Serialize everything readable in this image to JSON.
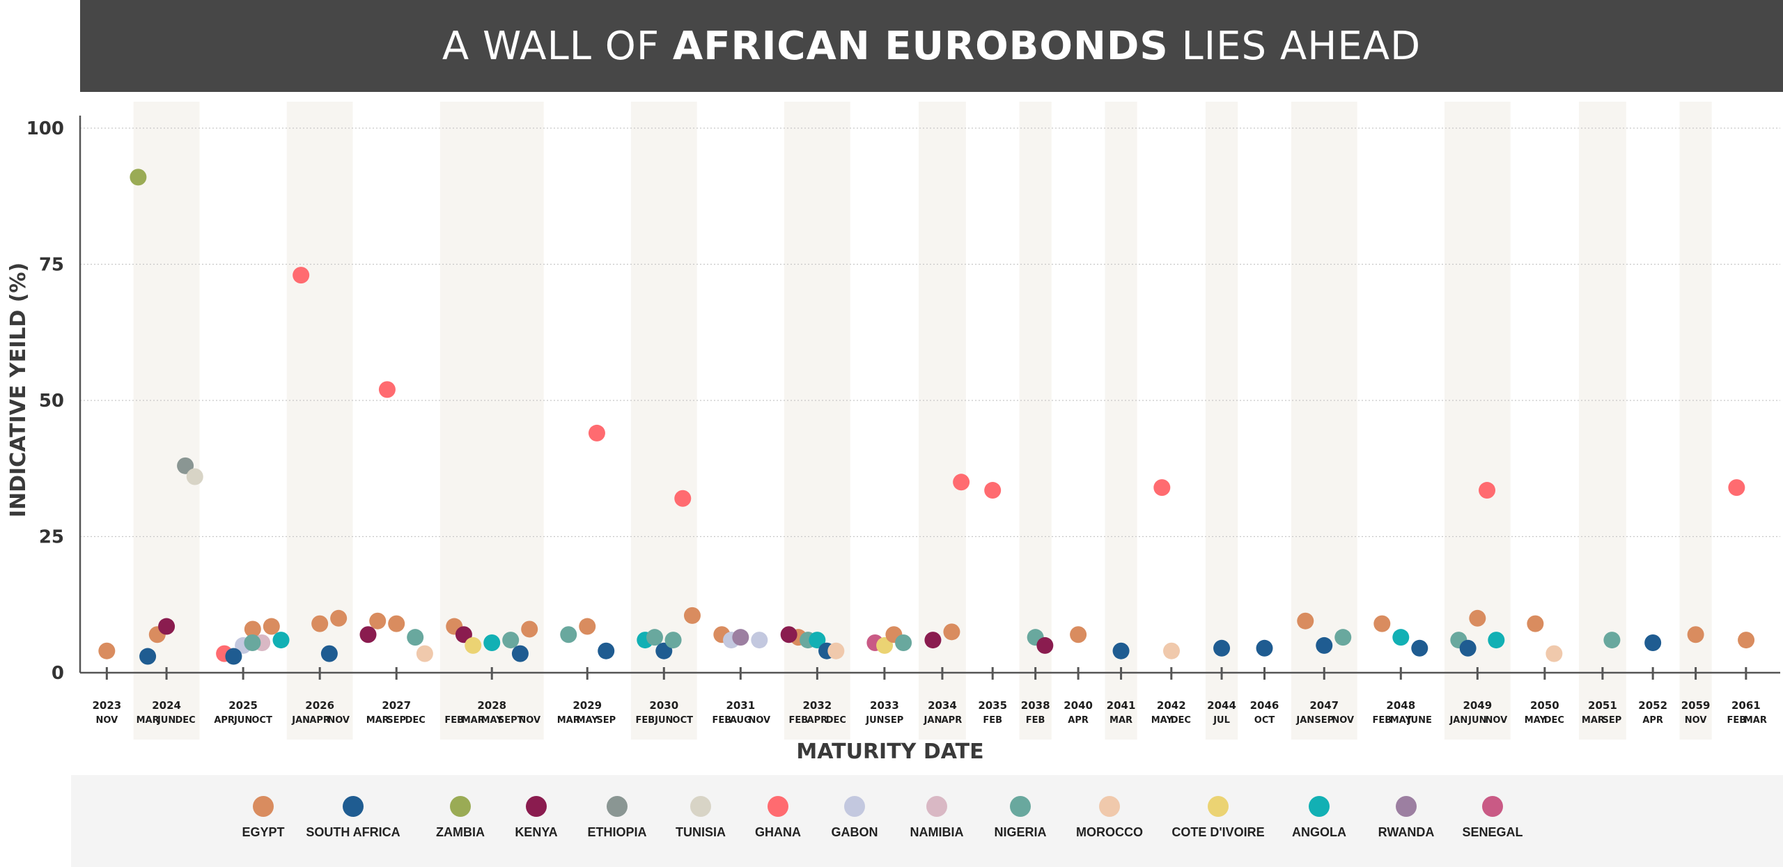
{
  "title": {
    "part1": "A WALL OF ",
    "part2": "AFRICAN EUROBONDS",
    "part3": " LIES AHEAD"
  },
  "colors": {
    "title_bg": "#474747",
    "band": "#f7f5f1",
    "grid": "#c8c8c8",
    "axis": "#555555",
    "EGYPT": "#d98c5f",
    "SOUTH AFRICA": "#1f5c91",
    "ZAMBIA": "#9aab55",
    "KENYA": "#8a1c4f",
    "ETHIOPIA": "#8a9693",
    "TUNISIA": "#d8d4c6",
    "GHANA": "#ff6b70",
    "GABON": "#c3c8df",
    "NAMIBIA": "#d9b8c4",
    "NIGERIA": "#69a89e",
    "MOROCCO": "#f0c9ac",
    "COTE D'IVOIRE": "#ebd373",
    "ANGOLA": "#12b0b4",
    "RWANDA": "#9c7fa1",
    "SENEGAL": "#c95a85"
  },
  "chart_data": {
    "type": "scatter",
    "title": "A WALL OF AFRICAN EUROBONDS LIES AHEAD",
    "xlabel": "MATURITY DATE",
    "ylabel": "INDICATIVE YEILD (%)",
    "ylim": [
      0,
      100
    ],
    "yticks": [
      0,
      25,
      50,
      75,
      100
    ],
    "grid": "horizontal dotted",
    "legend_position": "bottom",
    "legend": [
      "EGYPT",
      "SOUTH AFRICA",
      "ZAMBIA",
      "KENYA",
      "ETHIOPIA",
      "TUNISIA",
      "GHANA",
      "GABON",
      "NAMIBIA",
      "NIGERIA",
      "MOROCCO",
      "COTE D'IVOIRE",
      "ANGOLA",
      "RWANDA",
      "SENEGAL"
    ],
    "years": [
      {
        "year": "2023",
        "months": [
          "NOV"
        ],
        "shaded": false
      },
      {
        "year": "2024",
        "months": [
          "MAR",
          "JUN",
          "DEC"
        ],
        "shaded": true
      },
      {
        "year": "2025",
        "months": [
          "APR",
          "JUN",
          "OCT"
        ],
        "shaded": false
      },
      {
        "year": "2026",
        "months": [
          "JAN",
          "APR",
          "NOV"
        ],
        "shaded": true
      },
      {
        "year": "2027",
        "months": [
          "MAR",
          "SEP",
          "DEC"
        ],
        "shaded": false
      },
      {
        "year": "2028",
        "months": [
          "FEB",
          "MAR",
          "MAY",
          "SEPT",
          "NOV"
        ],
        "shaded": true
      },
      {
        "year": "2029",
        "months": [
          "MAR",
          "MAY",
          "SEP"
        ],
        "shaded": false
      },
      {
        "year": "2030",
        "months": [
          "FEB",
          "JUN",
          "OCT"
        ],
        "shaded": true
      },
      {
        "year": "2031",
        "months": [
          "FEB",
          "AUG",
          "NOV"
        ],
        "shaded": false
      },
      {
        "year": "2032",
        "months": [
          "FEB",
          "APR",
          "DEC"
        ],
        "shaded": true
      },
      {
        "year": "2033",
        "months": [
          "JUN",
          "SEP"
        ],
        "shaded": false
      },
      {
        "year": "2034",
        "months": [
          "JAN",
          "APR"
        ],
        "shaded": true
      },
      {
        "year": "2035",
        "months": [
          "FEB"
        ],
        "shaded": false
      },
      {
        "year": "2038",
        "months": [
          "FEB"
        ],
        "shaded": true
      },
      {
        "year": "2040",
        "months": [
          "APR"
        ],
        "shaded": false
      },
      {
        "year": "2041",
        "months": [
          "MAR"
        ],
        "shaded": true
      },
      {
        "year": "2042",
        "months": [
          "MAY",
          "DEC"
        ],
        "shaded": false
      },
      {
        "year": "2044",
        "months": [
          "JUL"
        ],
        "shaded": true
      },
      {
        "year": "2046",
        "months": [
          "OCT"
        ],
        "shaded": false
      },
      {
        "year": "2047",
        "months": [
          "JAN",
          "SEP",
          "NOV"
        ],
        "shaded": true
      },
      {
        "year": "2048",
        "months": [
          "FEB",
          "MAY",
          "JUNE"
        ],
        "shaded": false
      },
      {
        "year": "2049",
        "months": [
          "JAN",
          "JUN",
          "NOV"
        ],
        "shaded": true
      },
      {
        "year": "2050",
        "months": [
          "MAY",
          "DEC"
        ],
        "shaded": false
      },
      {
        "year": "2051",
        "months": [
          "MAR",
          "SEP"
        ],
        "shaded": true
      },
      {
        "year": "2052",
        "months": [
          "APR"
        ],
        "shaded": false
      },
      {
        "year": "2059",
        "months": [
          "NOV"
        ],
        "shaded": true
      },
      {
        "year": "2061",
        "months": [
          "FEB",
          "MAR"
        ],
        "shaded": false
      }
    ],
    "points": [
      {
        "country": "EGYPT",
        "year": "2023",
        "month": "NOV",
        "y": 4
      },
      {
        "country": "SOUTH AFRICA",
        "year": "2024",
        "month": "MAR",
        "y": 3
      },
      {
        "country": "EGYPT",
        "year": "2024",
        "month": "MAR",
        "y": 7
      },
      {
        "country": "ZAMBIA",
        "year": "2024",
        "month": "MAR",
        "y": 91
      },
      {
        "country": "KENYA",
        "year": "2024",
        "month": "JUN",
        "y": 8.5
      },
      {
        "country": "ETHIOPIA",
        "year": "2024",
        "month": "DEC",
        "y": 38
      },
      {
        "country": "TUNISIA",
        "year": "2024",
        "month": "DEC",
        "y": 36
      },
      {
        "country": "GHANA",
        "year": "2025",
        "month": "APR",
        "y": 3.5
      },
      {
        "country": "GABON",
        "year": "2025",
        "month": "JUN",
        "y": 5
      },
      {
        "country": "EGYPT",
        "year": "2025",
        "month": "JUN",
        "y": 8
      },
      {
        "country": "SOUTH AFRICA",
        "year": "2025",
        "month": "JUN",
        "y": 3
      },
      {
        "country": "NAMIBIA",
        "year": "2025",
        "month": "OCT",
        "y": 5.5
      },
      {
        "country": "EGYPT",
        "year": "2025",
        "month": "OCT",
        "y": 8.5
      },
      {
        "country": "NIGERIA",
        "year": "2025",
        "month": "OCT",
        "y": 5.5
      },
      {
        "country": "ANGOLA",
        "year": "2025",
        "month": "OCT",
        "y": 6
      },
      {
        "country": "GHANA",
        "year": "2026",
        "month": "JAN",
        "y": 73
      },
      {
        "country": "EGYPT",
        "year": "2026",
        "month": "APR",
        "y": 9
      },
      {
        "country": "SOUTH AFRICA",
        "year": "2026",
        "month": "APR",
        "y": 3.5
      },
      {
        "country": "EGYPT",
        "year": "2026",
        "month": "NOV",
        "y": 10
      },
      {
        "country": "EGYPT",
        "year": "2027",
        "month": "MAR",
        "y": 9.5
      },
      {
        "country": "GHANA",
        "year": "2027",
        "month": "MAR",
        "y": 52
      },
      {
        "country": "KENYA",
        "year": "2027",
        "month": "MAR",
        "y": 7
      },
      {
        "country": "EGYPT",
        "year": "2027",
        "month": "SEP",
        "y": 9
      },
      {
        "country": "NIGERIA",
        "year": "2027",
        "month": "DEC",
        "y": 6.5
      },
      {
        "country": "MOROCCO",
        "year": "2027",
        "month": "DEC",
        "y": 3.5
      },
      {
        "country": "EGYPT",
        "year": "2028",
        "month": "FEB",
        "y": 8.5
      },
      {
        "country": "KENYA",
        "year": "2028",
        "month": "FEB",
        "y": 7
      },
      {
        "country": "COTE D'IVOIRE",
        "year": "2028",
        "month": "MAR",
        "y": 5
      },
      {
        "country": "ANGOLA",
        "year": "2028",
        "month": "MAY",
        "y": 5.5
      },
      {
        "country": "NIGERIA",
        "year": "2028",
        "month": "SEPT",
        "y": 6
      },
      {
        "country": "SOUTH AFRICA",
        "year": "2028",
        "month": "SEPT",
        "y": 3.5
      },
      {
        "country": "EGYPT",
        "year": "2028",
        "month": "NOV",
        "y": 8
      },
      {
        "country": "NIGERIA",
        "year": "2029",
        "month": "MAR",
        "y": 7
      },
      {
        "country": "EGYPT",
        "year": "2029",
        "month": "MAY",
        "y": 8.5
      },
      {
        "country": "GHANA",
        "year": "2029",
        "month": "MAY",
        "y": 44
      },
      {
        "country": "SOUTH AFRICA",
        "year": "2029",
        "month": "SEP",
        "y": 4
      },
      {
        "country": "ANGOLA",
        "year": "2030",
        "month": "FEB",
        "y": 6
      },
      {
        "country": "NIGERIA",
        "year": "2030",
        "month": "FEB",
        "y": 6.5
      },
      {
        "country": "SOUTH AFRICA",
        "year": "2030",
        "month": "JUN",
        "y": 4
      },
      {
        "country": "GHANA",
        "year": "2030",
        "month": "OCT",
        "y": 32
      },
      {
        "country": "EGYPT",
        "year": "2030",
        "month": "OCT",
        "y": 10.5
      },
      {
        "country": "NIGERIA",
        "year": "2030",
        "month": "OCT",
        "y": 6
      },
      {
        "country": "EGYPT",
        "year": "2031",
        "month": "FEB",
        "y": 7
      },
      {
        "country": "GABON",
        "year": "2031",
        "month": "FEB",
        "y": 6
      },
      {
        "country": "RWANDA",
        "year": "2031",
        "month": "AUG",
        "y": 6.5
      },
      {
        "country": "GABON",
        "year": "2031",
        "month": "NOV",
        "y": 6
      },
      {
        "country": "EGYPT",
        "year": "2032",
        "month": "FEB",
        "y": 6.5
      },
      {
        "country": "NIGERIA",
        "year": "2032",
        "month": "FEB",
        "y": 6
      },
      {
        "country": "KENYA",
        "year": "2032",
        "month": "FEB",
        "y": 7
      },
      {
        "country": "ANGOLA",
        "year": "2032",
        "month": "APR",
        "y": 6
      },
      {
        "country": "SOUTH AFRICA",
        "year": "2032",
        "month": "APR",
        "y": 4
      },
      {
        "country": "MOROCCO",
        "year": "2032",
        "month": "DEC",
        "y": 4
      },
      {
        "country": "SENEGAL",
        "year": "2033",
        "month": "JUN",
        "y": 5.5
      },
      {
        "country": "COTE D'IVOIRE",
        "year": "2033",
        "month": "JUN",
        "y": 5
      },
      {
        "country": "EGYPT",
        "year": "2033",
        "month": "SEP",
        "y": 7
      },
      {
        "country": "NIGERIA",
        "year": "2033",
        "month": "SEP",
        "y": 5.5
      },
      {
        "country": "KENYA",
        "year": "2034",
        "month": "JAN",
        "y": 6
      },
      {
        "country": "EGYPT",
        "year": "2034",
        "month": "APR",
        "y": 7.5
      },
      {
        "country": "GHANA",
        "year": "2034",
        "month": "APR",
        "y": 35
      },
      {
        "country": "GHANA",
        "year": "2035",
        "month": "FEB",
        "y": 33.5
      },
      {
        "country": "NIGERIA",
        "year": "2038",
        "month": "FEB",
        "y": 6.5
      },
      {
        "country": "KENYA",
        "year": "2038",
        "month": "FEB",
        "y": 5
      },
      {
        "country": "EGYPT",
        "year": "2040",
        "month": "APR",
        "y": 7
      },
      {
        "country": "SOUTH AFRICA",
        "year": "2041",
        "month": "MAR",
        "y": 4
      },
      {
        "country": "GHANA",
        "year": "2042",
        "month": "MAY",
        "y": 34
      },
      {
        "country": "MOROCCO",
        "year": "2042",
        "month": "MAY",
        "y": 4
      },
      {
        "country": "SOUTH AFRICA",
        "year": "2044",
        "month": "JUL",
        "y": 4.5
      },
      {
        "country": "SOUTH AFRICA",
        "year": "2046",
        "month": "OCT",
        "y": 4.5
      },
      {
        "country": "EGYPT",
        "year": "2047",
        "month": "JAN",
        "y": 9.5
      },
      {
        "country": "SOUTH AFRICA",
        "year": "2047",
        "month": "SEP",
        "y": 5
      },
      {
        "country": "NIGERIA",
        "year": "2047",
        "month": "NOV",
        "y": 6.5
      },
      {
        "country": "EGYPT",
        "year": "2048",
        "month": "FEB",
        "y": 9
      },
      {
        "country": "ANGOLA",
        "year": "2048",
        "month": "MAY",
        "y": 6.5
      },
      {
        "country": "SOUTH AFRICA",
        "year": "2048",
        "month": "JUNE",
        "y": 4.5
      },
      {
        "country": "NIGERIA",
        "year": "2049",
        "month": "JAN",
        "y": 6
      },
      {
        "country": "EGYPT",
        "year": "2049",
        "month": "JUN",
        "y": 10
      },
      {
        "country": "GHANA",
        "year": "2049",
        "month": "JUN",
        "y": 33.5
      },
      {
        "country": "SOUTH AFRICA",
        "year": "2049",
        "month": "JUN",
        "y": 4.5
      },
      {
        "country": "ANGOLA",
        "year": "2049",
        "month": "NOV",
        "y": 6
      },
      {
        "country": "EGYPT",
        "year": "2050",
        "month": "MAY",
        "y": 9
      },
      {
        "country": "MOROCCO",
        "year": "2050",
        "month": "DEC",
        "y": 3.5
      },
      {
        "country": "NIGERIA",
        "year": "2051",
        "month": "SEP",
        "y": 6
      },
      {
        "country": "SOUTH AFRICA",
        "year": "2052",
        "month": "APR",
        "y": 5.5
      },
      {
        "country": "EGYPT",
        "year": "2059",
        "month": "NOV",
        "y": 7
      },
      {
        "country": "GHANA",
        "year": "2061",
        "month": "FEB",
        "y": 34
      },
      {
        "country": "EGYPT",
        "year": "2061",
        "month": "FEB",
        "y": 6
      }
    ]
  }
}
